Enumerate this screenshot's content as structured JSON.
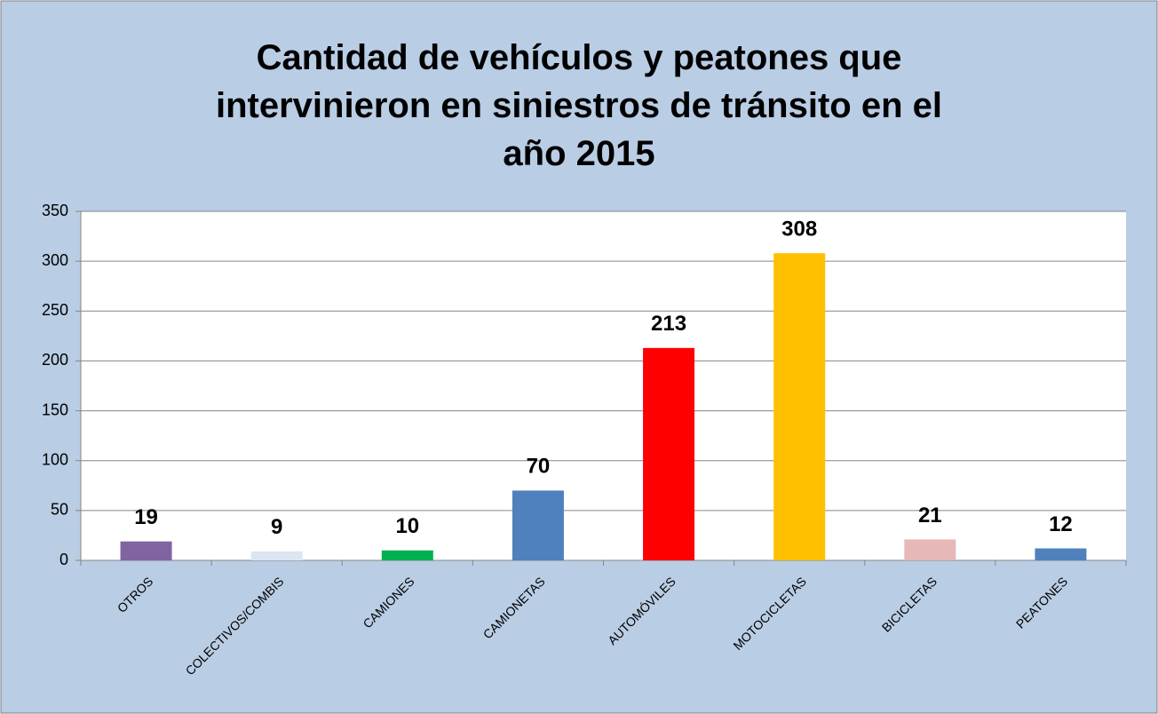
{
  "chart_data": {
    "type": "bar",
    "title": "Cantidad de vehículos y peatones que intervinieron en siniestros de tránsito en el año 2015",
    "categories": [
      "OTROS",
      "COLECTIVOS/COMBIS",
      "CAMIONES",
      "CAMIONETAS",
      "AUTOMÓVILES",
      "MOTOCICLETAS",
      "BICICLETAS",
      "PEATONES"
    ],
    "values": [
      19,
      9,
      10,
      70,
      213,
      308,
      21,
      12
    ],
    "colors": [
      "#8064a2",
      "#dce6f2",
      "#00b050",
      "#4f81bd",
      "#ff0000",
      "#ffc000",
      "#e6b9b8",
      "#4f81bd"
    ],
    "ylim": [
      0,
      350
    ],
    "yticks": [
      0,
      50,
      100,
      150,
      200,
      250,
      300,
      350
    ],
    "grid": true
  }
}
